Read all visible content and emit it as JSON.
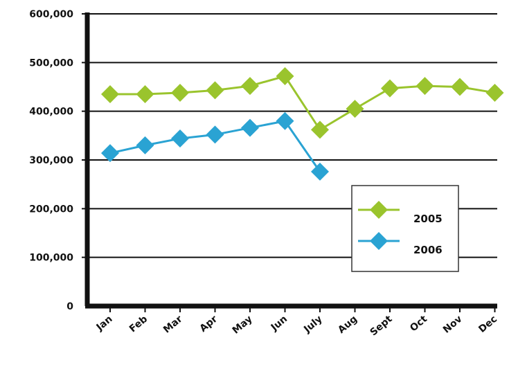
{
  "chart_data": {
    "type": "line",
    "categories": [
      "Jan",
      "Feb",
      "Mar",
      "Apr",
      "May",
      "Jun",
      "July",
      "Aug",
      "Sept",
      "Oct",
      "Nov",
      "Dec"
    ],
    "series": [
      {
        "name": "2005",
        "color": "#9ac42d",
        "values": [
          435000,
          435000,
          438000,
          443000,
          452000,
          472000,
          362000,
          405000,
          447000,
          452000,
          450000,
          438000
        ]
      },
      {
        "name": "2006",
        "color": "#2aa3d3",
        "values": [
          314000,
          330000,
          344000,
          352000,
          366000,
          380000,
          276000,
          null,
          null,
          null,
          null,
          null
        ]
      }
    ],
    "ylim": [
      0,
      600000
    ],
    "yticks": [
      "0",
      "100,000",
      "200,000",
      "300,000",
      "400,000",
      "500,000",
      "600,000"
    ],
    "grid": true,
    "legend_position": "lower-right",
    "marker": "diamond"
  }
}
